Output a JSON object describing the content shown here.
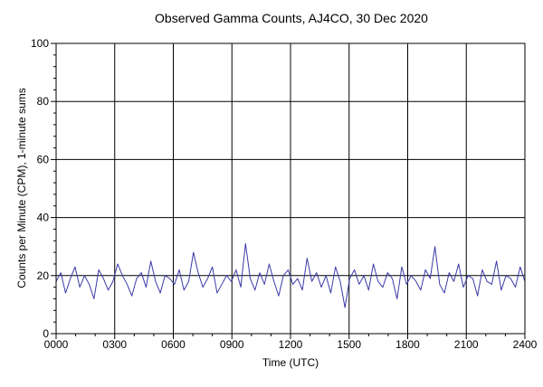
{
  "chart_data": {
    "type": "line",
    "title": "Observed Gamma Counts, AJ4CO, 30 Dec 2020",
    "xlabel": "Time (UTC)",
    "ylabel": "Counts per Minute (CPM), 1-minute sums",
    "xlim": [
      0,
      1440
    ],
    "ylim": [
      0,
      100
    ],
    "x_ticks": [
      {
        "value": 0,
        "label": "0000"
      },
      {
        "value": 180,
        "label": "0300"
      },
      {
        "value": 360,
        "label": "0600"
      },
      {
        "value": 540,
        "label": "0900"
      },
      {
        "value": 720,
        "label": "1200"
      },
      {
        "value": 900,
        "label": "1500"
      },
      {
        "value": 1080,
        "label": "1800"
      },
      {
        "value": 1260,
        "label": "2100"
      },
      {
        "value": 1440,
        "label": "2400"
      }
    ],
    "y_ticks": [
      0,
      20,
      40,
      60,
      80,
      100
    ],
    "grid": true,
    "line_color": "#3a3aa8",
    "series": [
      {
        "values": [
          18,
          21,
          14,
          19,
          23,
          16,
          20,
          17,
          12,
          22,
          19,
          15,
          18,
          24,
          20,
          17,
          13,
          19,
          21,
          16,
          25,
          18,
          14,
          20,
          19,
          17,
          22,
          15,
          18,
          28,
          21,
          16,
          19,
          23,
          14,
          17,
          20,
          18,
          22,
          16,
          31,
          19,
          15,
          21,
          17,
          24,
          18,
          13,
          20,
          22,
          17,
          19,
          15,
          26,
          18,
          21,
          16,
          20,
          14,
          23,
          18,
          9,
          19,
          22,
          17,
          20,
          15,
          24,
          18,
          16,
          21,
          19,
          12,
          23,
          17,
          20,
          18,
          15,
          22,
          19,
          30,
          17,
          14,
          21,
          18,
          24,
          16,
          20,
          19,
          13,
          22,
          18,
          17,
          25,
          15,
          20,
          19,
          16,
          23,
          18
        ]
      }
    ]
  }
}
